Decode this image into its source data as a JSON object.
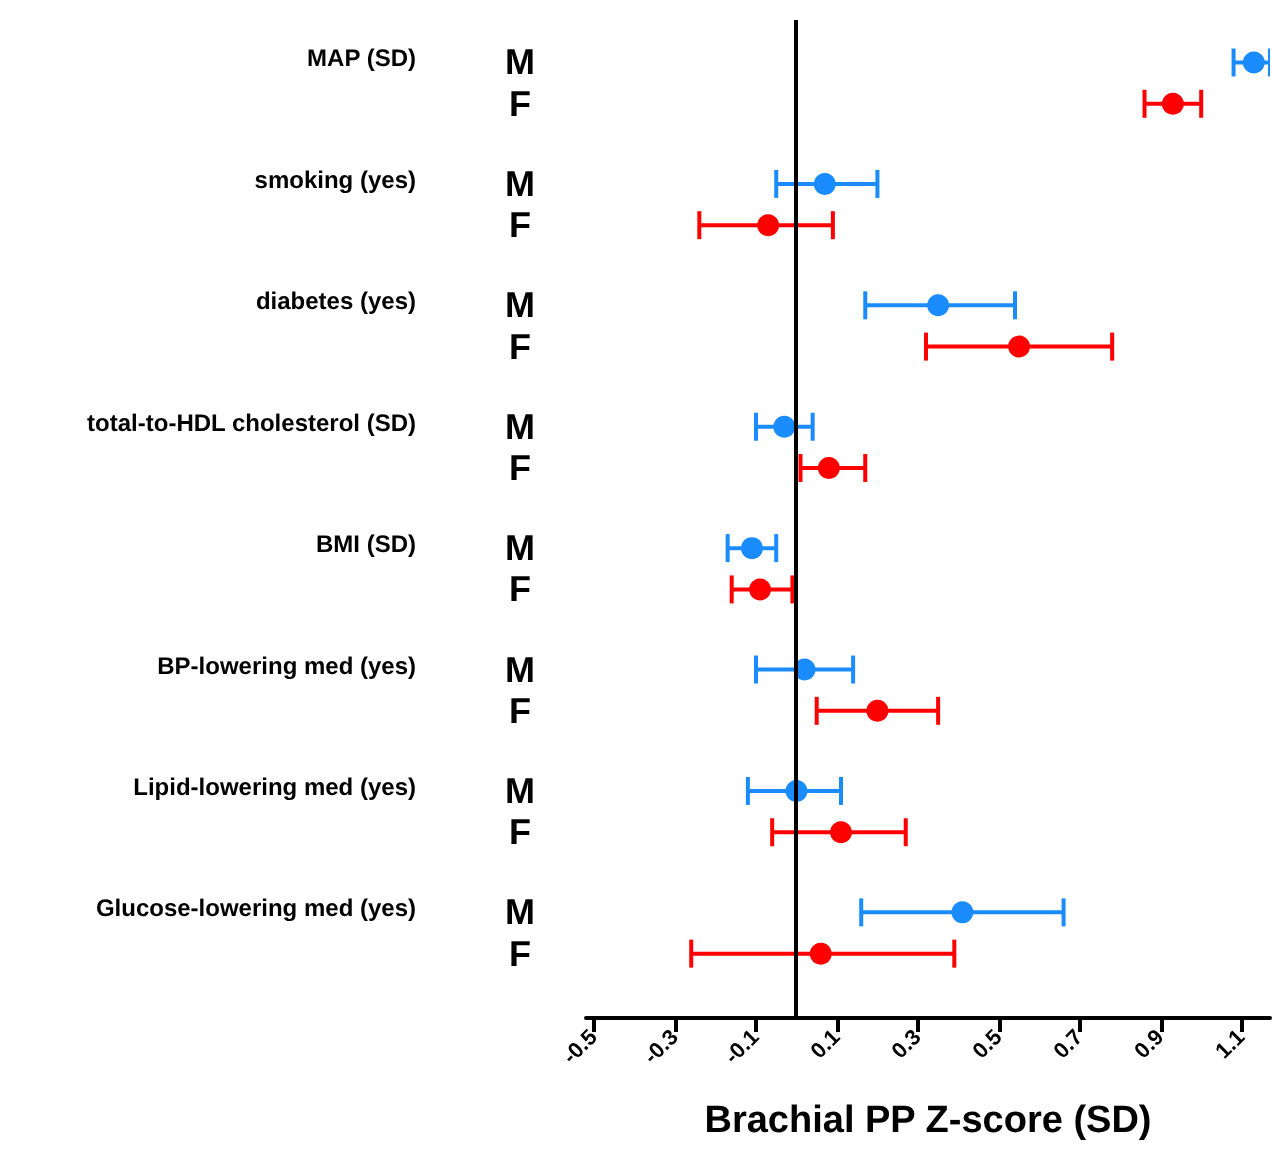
{
  "chart_data": {
    "type": "scatter",
    "orientation": "horizontal",
    "xlabel": "Brachial PP Z-score (SD)",
    "categories": [
      "M",
      "F",
      "M",
      "F",
      "M",
      "F",
      "M",
      "F",
      "M",
      "F",
      "M",
      "F",
      "M",
      "F",
      "M",
      "F"
    ],
    "annotations": [
      "MAP (SD)",
      "smoking (yes)",
      "diabetes (yes)",
      "total-to-HDL cholesterol (SD)",
      "BMI (SD)",
      "BP-lowering med (yes)",
      "Lipid-lowering med (yes)",
      "Glucose-lowering med (yes)"
    ],
    "series": [
      {
        "values": [
          1.13,
          0.93,
          0.07,
          -0.07,
          0.35,
          0.55,
          -0.03,
          0.08,
          -0.11,
          -0.09,
          0.02,
          0.2,
          0.0,
          0.11,
          0.41,
          0.06
        ],
        "colors": [
          "#1a8cff",
          "#ff0000",
          "#1a8cff",
          "#ff0000",
          "#1a8cff",
          "#ff0000",
          "#1a8cff",
          "#ff0000",
          "#1a8cff",
          "#ff0000",
          "#1a8cff",
          "#ff0000",
          "#1a8cff",
          "#ff0000",
          "#1a8cff",
          "#ff0000"
        ],
        "errors": [
          [
            1.08,
            1.17
          ],
          [
            0.86,
            1.0
          ],
          [
            -0.05,
            0.2
          ],
          [
            -0.24,
            0.09
          ],
          [
            0.17,
            0.54
          ],
          [
            0.32,
            0.78
          ],
          [
            -0.1,
            0.04
          ],
          [
            0.01,
            0.17
          ],
          [
            -0.17,
            -0.05
          ],
          [
            -0.16,
            -0.01
          ],
          [
            -0.1,
            0.14
          ],
          [
            0.05,
            0.35
          ],
          [
            -0.12,
            0.11
          ],
          [
            -0.06,
            0.27
          ],
          [
            0.16,
            0.66
          ],
          [
            -0.26,
            0.39
          ]
        ]
      }
    ],
    "xlim": [
      -0.52,
      1.17
    ],
    "xticks": [
      -0.5,
      -0.3,
      -0.1,
      0.1,
      0.3,
      0.5,
      0.7,
      0.9,
      1.1
    ],
    "ref_lines": [
      {
        "axis": "x",
        "value": 0
      }
    ],
    "marker": "circle"
  }
}
